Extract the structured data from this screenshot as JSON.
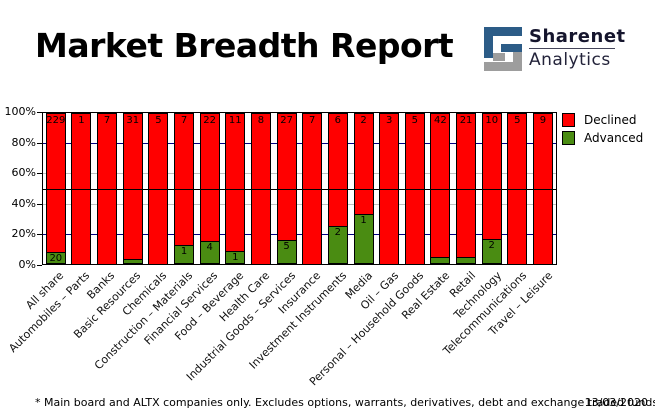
{
  "header": {
    "title": "Market Breadth Report",
    "logo": {
      "line1": "Sharenet",
      "line2": "Analytics",
      "blue": "#2c5c87",
      "gray": "#9d9d9d"
    }
  },
  "chart_data": {
    "type": "bar",
    "stacked": true,
    "title": "Market Breadth Report",
    "categories": [
      "All share",
      "Automobiles – Parts",
      "Banks",
      "Basic Resources",
      "Chemicals",
      "Construction – Materials",
      "Financial Services",
      "Food – Beverage",
      "Health Care",
      "Industrial Goods – Services",
      "Insurance",
      "Investment Instruments",
      "Media",
      "Oil – Gas",
      "Personal – Household Goods",
      "Real Estate",
      "Retail",
      "Technology",
      "Telecommunications",
      "Travel – Leisure"
    ],
    "series": [
      {
        "name": "Declined",
        "color": "#ff0000",
        "values": [
          229,
          1,
          7,
          31,
          5,
          7,
          22,
          11,
          8,
          27,
          7,
          6,
          2,
          3,
          5,
          42,
          21,
          10,
          5,
          9
        ]
      },
      {
        "name": "Advanced",
        "color": "#4a8c12",
        "values": [
          20,
          0,
          0,
          1,
          0,
          1,
          4,
          1,
          0,
          5,
          0,
          2,
          1,
          0,
          0,
          2,
          1,
          2,
          0,
          0
        ]
      }
    ],
    "y_ticks": [
      "0%",
      "20%",
      "40%",
      "60%",
      "80%",
      "100%"
    ],
    "ylim": [
      0,
      100
    ],
    "grid": {
      "navy_lines_pct": [
        20,
        80
      ],
      "silver_lines_pct": [
        40,
        60
      ],
      "black_line_pct": 50,
      "navy": "#000080",
      "silver": "#c0c0c0",
      "black": "#000000"
    },
    "legend_position": "top-right"
  },
  "footer": {
    "note": "* Main board and ALTX companies only. Excludes options, warrants, derivatives, debt and exchange traded funds",
    "date": "13/03/2020"
  }
}
